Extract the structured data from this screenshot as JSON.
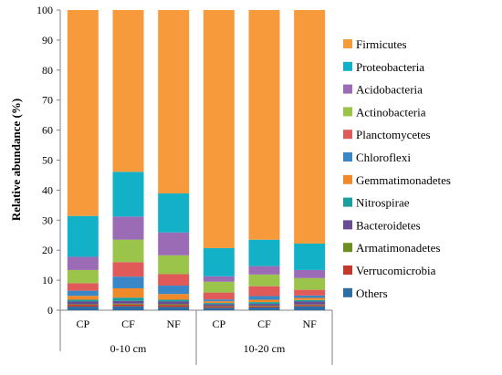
{
  "chart_data": {
    "type": "bar",
    "stacked": true,
    "ylabel": "Relative abundance (%)",
    "ylim": [
      0,
      100
    ],
    "yticks": [
      0,
      10,
      20,
      30,
      40,
      50,
      60,
      70,
      80,
      90,
      100
    ],
    "grid": false,
    "legend_position": "right",
    "groups": [
      {
        "label": "0-10 cm",
        "categories": [
          "CP",
          "CF",
          "NF"
        ]
      },
      {
        "label": "10-20 cm",
        "categories": [
          "CP",
          "CF",
          "NF"
        ]
      }
    ],
    "categories": [
      "CP",
      "CF",
      "NF",
      "CP",
      "CF",
      "NF"
    ],
    "series": [
      {
        "name": "Others",
        "color": "#2e6da4",
        "values": [
          1.2,
          1.3,
          1.1,
          0.8,
          0.9,
          1.3
        ]
      },
      {
        "name": "Verrucomicrobia",
        "color": "#c0392b",
        "values": [
          0.6,
          0.6,
          0.6,
          0.4,
          0.4,
          0.4
        ]
      },
      {
        "name": "Armatimonadetes",
        "color": "#6b8e23",
        "values": [
          0.2,
          0.3,
          0.3,
          0.2,
          0.2,
          0.2
        ]
      },
      {
        "name": "Bacteroidetes",
        "color": "#6a4c93",
        "values": [
          0.9,
          0.9,
          0.9,
          0.6,
          0.6,
          1.0
        ]
      },
      {
        "name": "Nitrospirae",
        "color": "#1a9e9e",
        "values": [
          0.6,
          1.1,
          0.6,
          0.4,
          0.6,
          0.5
        ]
      },
      {
        "name": "Gemmatimonadetes",
        "color": "#f0892a",
        "values": [
          1.3,
          3.1,
          1.9,
          0.6,
          0.8,
          0.7
        ]
      },
      {
        "name": "Chloroflexi",
        "color": "#3a87c8",
        "values": [
          1.7,
          3.9,
          2.8,
          0.6,
          1.2,
          0.8
        ]
      },
      {
        "name": "Planctomycetes",
        "color": "#e05a5a",
        "values": [
          2.5,
          4.8,
          3.8,
          2.3,
          3.3,
          1.9
        ]
      },
      {
        "name": "Actinobacteria",
        "color": "#9bc44b",
        "values": [
          4.4,
          7.5,
          6.3,
          3.6,
          3.9,
          3.9
        ]
      },
      {
        "name": "Acidobacteria",
        "color": "#9b6bb5",
        "values": [
          4.4,
          7.7,
          7.6,
          1.8,
          2.8,
          2.7
        ]
      },
      {
        "name": "Proteobacteria",
        "color": "#12b1c8",
        "values": [
          13.6,
          14.9,
          13.0,
          9.4,
          8.8,
          8.8
        ]
      },
      {
        "name": "Firmicutes",
        "color": "#f79a3c",
        "values": [
          68.6,
          53.9,
          61.1,
          79.3,
          76.5,
          77.8
        ]
      }
    ]
  }
}
